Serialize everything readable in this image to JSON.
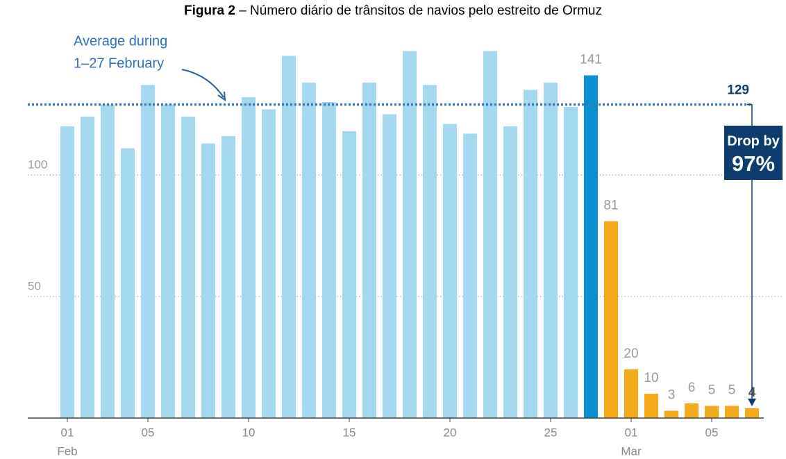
{
  "chart_data": {
    "type": "bar",
    "title_prefix": "Figura 2",
    "title": "– Número diário de trânsitos de navios pelo estreito de Ormuz",
    "categories": [
      "01",
      null,
      null,
      null,
      "05",
      null,
      null,
      null,
      null,
      "10",
      null,
      null,
      null,
      null,
      "15",
      null,
      null,
      null,
      null,
      "20",
      null,
      null,
      null,
      null,
      "25",
      null,
      null,
      null,
      "01",
      null,
      null,
      null,
      "05",
      null,
      null
    ],
    "category_groups": [
      "Feb",
      null,
      null,
      null,
      null,
      null,
      null,
      null,
      null,
      null,
      null,
      null,
      null,
      null,
      null,
      null,
      null,
      null,
      null,
      null,
      null,
      null,
      null,
      null,
      null,
      null,
      null,
      null,
      "Mar",
      null,
      null,
      null,
      null,
      null,
      null
    ],
    "values": [
      120,
      124,
      129,
      111,
      137,
      129,
      124,
      113,
      116,
      132,
      127,
      149,
      138,
      130,
      118,
      138,
      125,
      151,
      137,
      121,
      117,
      151,
      120,
      135,
      138,
      128,
      141,
      81,
      20,
      10,
      3,
      6,
      5,
      5,
      4
    ],
    "color": "#a3d9f0",
    "colors": [
      "#a3d9f0",
      "#a3d9f0",
      "#a3d9f0",
      "#a3d9f0",
      "#a3d9f0",
      "#a3d9f0",
      "#a3d9f0",
      "#a3d9f0",
      "#a3d9f0",
      "#a3d9f0",
      "#a3d9f0",
      "#a3d9f0",
      "#a3d9f0",
      "#a3d9f0",
      "#a3d9f0",
      "#a3d9f0",
      "#a3d9f0",
      "#a3d9f0",
      "#a3d9f0",
      "#a3d9f0",
      "#a3d9f0",
      "#a3d9f0",
      "#a3d9f0",
      "#a3d9f0",
      "#a3d9f0",
      "#a3d9f0",
      "#0a8fd0",
      "#f5aa1c",
      "#f5aa1c",
      "#f5aa1c",
      "#f5aa1c",
      "#f5aa1c",
      "#f5aa1c",
      "#f5aa1c",
      "#f5aa1c"
    ],
    "ylim": [
      0,
      160
    ],
    "yticks": [
      50,
      100
    ],
    "grid": true,
    "reference_line": {
      "value": 129,
      "annotation": [
        "Average during",
        "1–27 February"
      ]
    },
    "callout": [
      "Drop by",
      "97%"
    ]
  }
}
